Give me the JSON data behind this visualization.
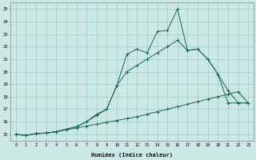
{
  "xlabel": "Humidex (Indice chaleur)",
  "bg_color": "#cce8e4",
  "grid_color": "#99cccc",
  "line_color": "#1a6655",
  "xlim": [
    -0.5,
    23.5
  ],
  "ylim": [
    14.5,
    25.5
  ],
  "xticks": [
    0,
    1,
    2,
    3,
    4,
    5,
    6,
    7,
    8,
    9,
    10,
    11,
    12,
    13,
    14,
    15,
    16,
    17,
    18,
    19,
    20,
    21,
    22,
    23
  ],
  "yticks": [
    15,
    16,
    17,
    18,
    19,
    20,
    21,
    22,
    23,
    24,
    25
  ],
  "line_bottom_x": [
    0,
    1,
    2,
    3,
    4,
    5,
    6,
    7,
    8,
    9,
    10,
    11,
    12,
    13,
    14,
    15,
    16,
    17,
    18,
    19,
    20,
    21,
    22,
    23
  ],
  "line_bottom_y": [
    15.0,
    14.9,
    15.05,
    15.1,
    15.2,
    15.35,
    15.5,
    15.65,
    15.8,
    15.95,
    16.1,
    16.25,
    16.4,
    16.6,
    16.8,
    17.0,
    17.2,
    17.4,
    17.6,
    17.8,
    18.0,
    18.2,
    18.4,
    17.5
  ],
  "line_mid_x": [
    0,
    1,
    2,
    3,
    4,
    5,
    6,
    7,
    8,
    9,
    10,
    11,
    12,
    13,
    14,
    15,
    16,
    17,
    18,
    19,
    20,
    21,
    22,
    23
  ],
  "line_mid_y": [
    15.0,
    14.9,
    15.05,
    15.1,
    15.2,
    15.4,
    15.6,
    16.0,
    16.5,
    17.0,
    18.9,
    20.0,
    20.5,
    21.0,
    21.5,
    22.0,
    22.5,
    21.7,
    21.8,
    21.0,
    19.8,
    18.5,
    17.5,
    17.5
  ],
  "line_top_x": [
    0,
    1,
    2,
    3,
    4,
    5,
    6,
    7,
    8,
    9,
    10,
    11,
    12,
    13,
    14,
    15,
    16,
    17,
    18,
    19,
    20,
    21,
    22,
    23
  ],
  "line_top_y": [
    15.0,
    14.9,
    15.05,
    15.1,
    15.2,
    15.4,
    15.6,
    16.0,
    16.6,
    17.0,
    18.9,
    21.4,
    21.8,
    21.5,
    23.2,
    23.3,
    25.0,
    21.7,
    21.8,
    21.0,
    19.8,
    17.5,
    17.5,
    17.5
  ]
}
